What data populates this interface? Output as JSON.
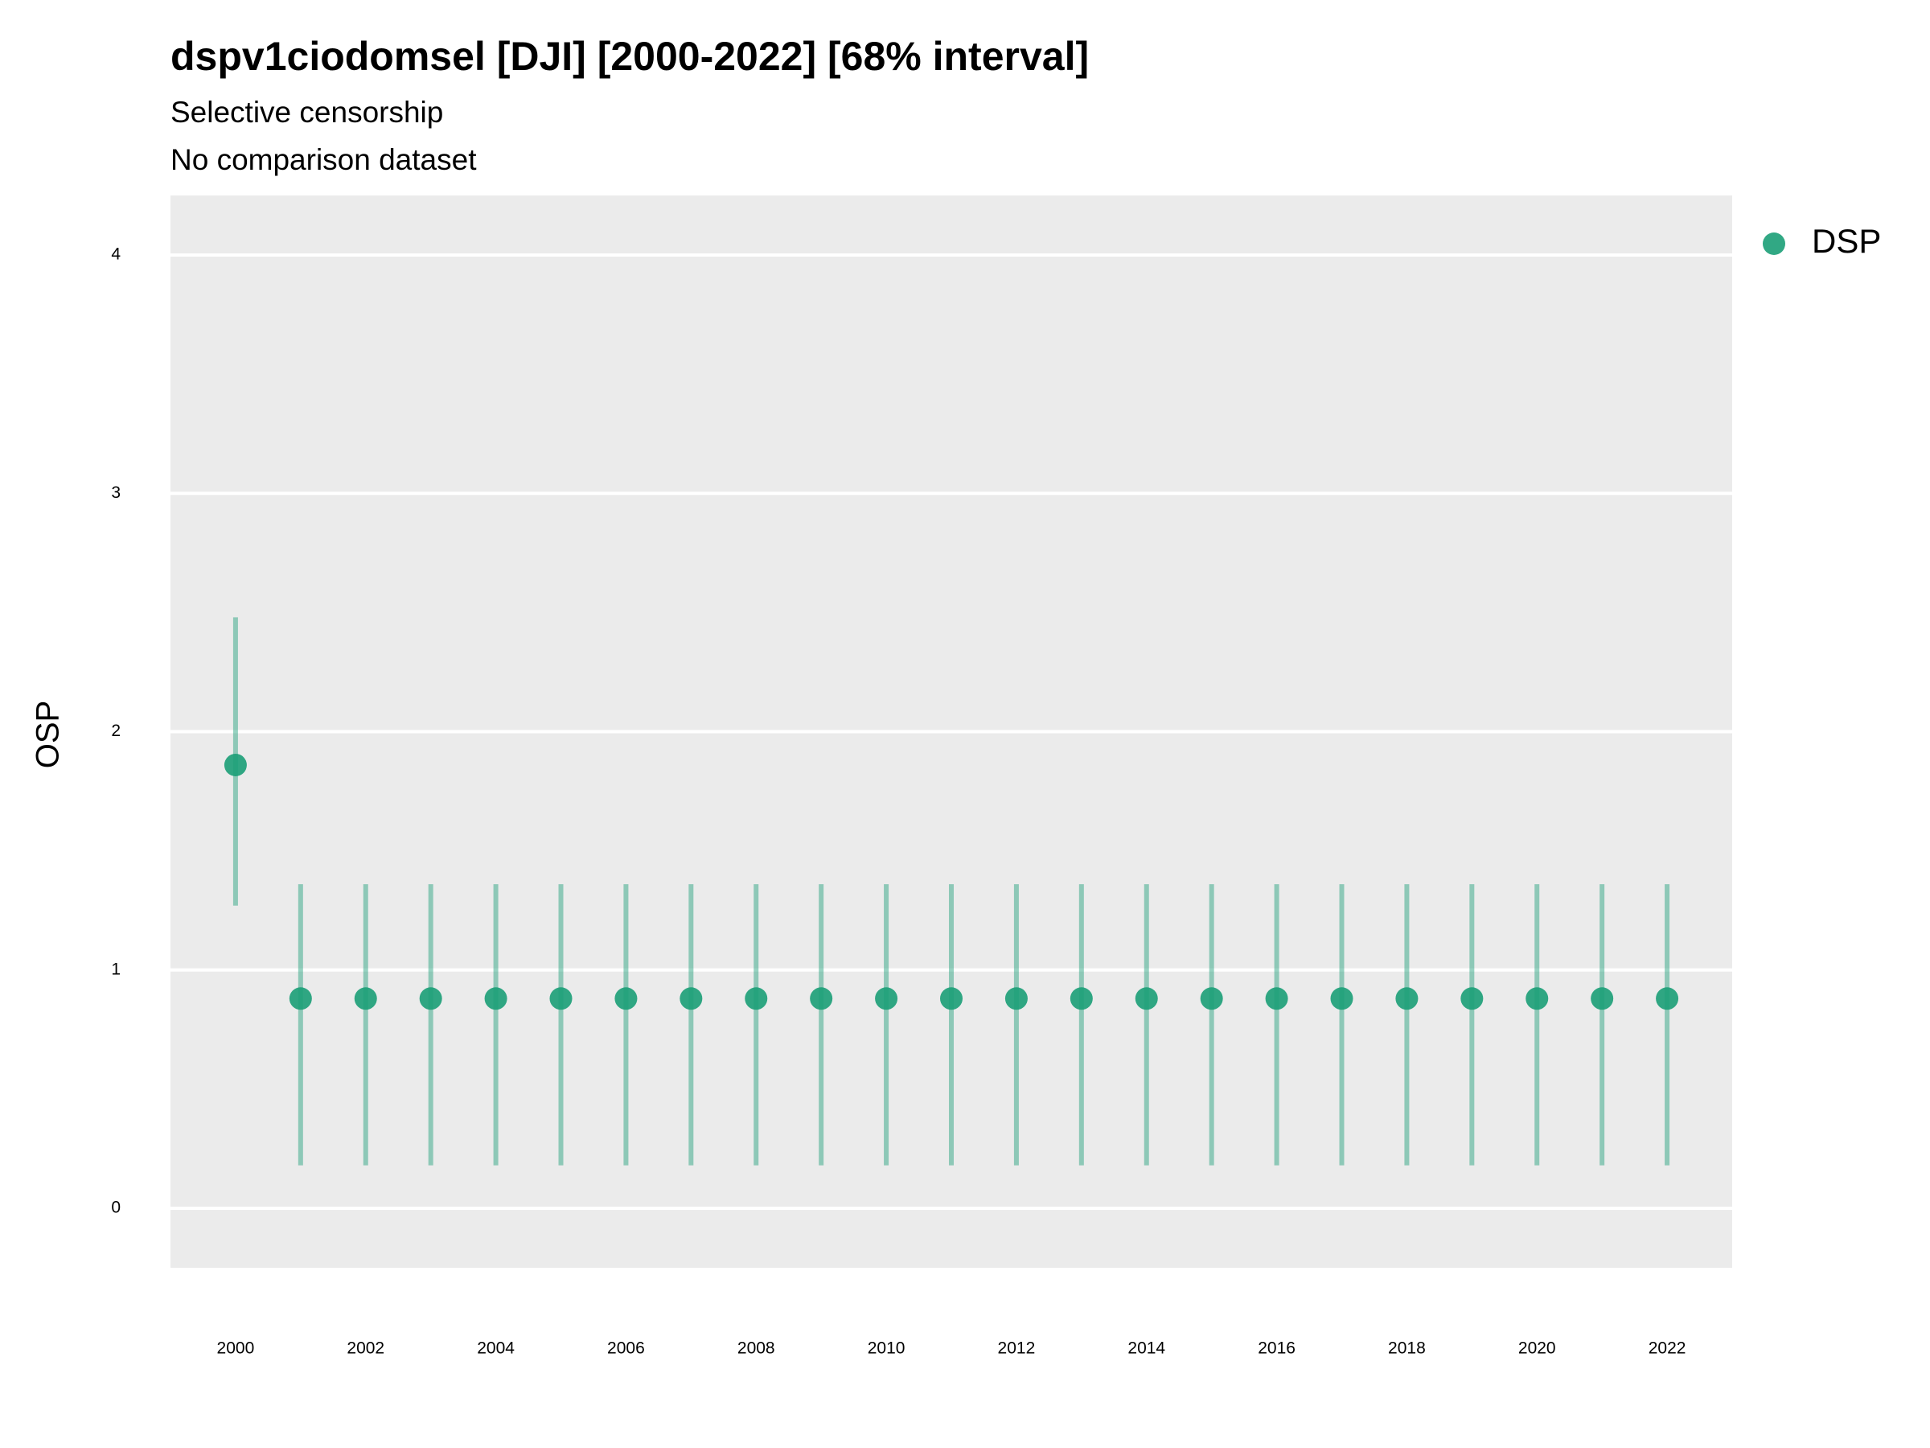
{
  "chart_data": {
    "type": "pointrange",
    "title": "dspv1ciodomsel [DJI] [2000-2022] [68% interval]",
    "subtitle": [
      "Selective censorship",
      "No comparison dataset"
    ],
    "y_label": "OSP",
    "x": [
      2000,
      2001,
      2002,
      2003,
      2004,
      2005,
      2006,
      2007,
      2008,
      2009,
      2010,
      2011,
      2012,
      2013,
      2014,
      2015,
      2016,
      2017,
      2018,
      2019,
      2020,
      2021,
      2022
    ],
    "series": [
      {
        "name": "DSP",
        "color": "#1b9e77",
        "values": [
          1.86,
          0.88,
          0.88,
          0.88,
          0.88,
          0.88,
          0.88,
          0.88,
          0.88,
          0.88,
          0.88,
          0.88,
          0.88,
          0.88,
          0.88,
          0.88,
          0.88,
          0.88,
          0.88,
          0.88,
          0.88,
          0.88,
          0.88
        ],
        "lower": [
          1.27,
          0.18,
          0.18,
          0.18,
          0.18,
          0.18,
          0.18,
          0.18,
          0.18,
          0.18,
          0.18,
          0.18,
          0.18,
          0.18,
          0.18,
          0.18,
          0.18,
          0.18,
          0.18,
          0.18,
          0.18,
          0.18,
          0.18
        ],
        "upper": [
          2.48,
          1.36,
          1.36,
          1.36,
          1.36,
          1.36,
          1.36,
          1.36,
          1.36,
          1.36,
          1.36,
          1.36,
          1.36,
          1.36,
          1.36,
          1.36,
          1.36,
          1.36,
          1.36,
          1.36,
          1.36,
          1.36,
          1.36
        ]
      }
    ],
    "xlim": [
      1999,
      2023
    ],
    "xticks": [
      2000,
      2002,
      2004,
      2006,
      2008,
      2010,
      2012,
      2014,
      2016,
      2018,
      2020,
      2022
    ],
    "ylim": [
      -0.25,
      4.25
    ],
    "yticks": [
      0,
      1,
      2,
      3,
      4
    ],
    "grid": true,
    "legend": "right"
  }
}
